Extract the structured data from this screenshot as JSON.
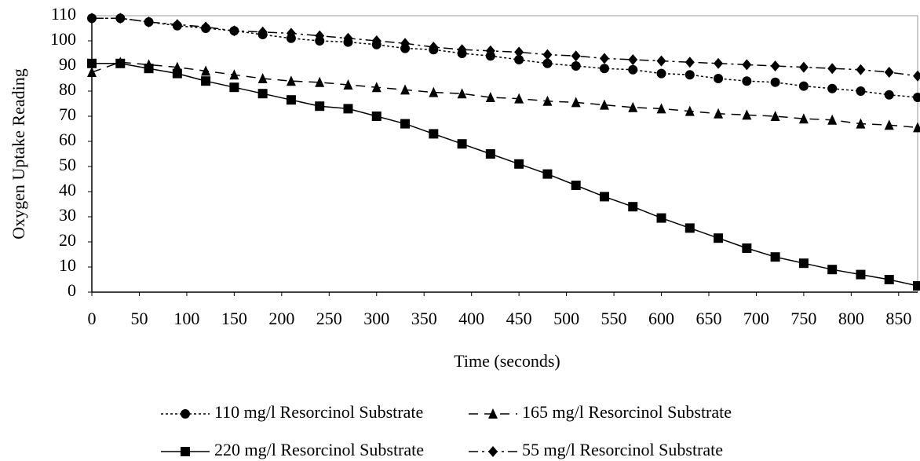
{
  "chart_data": {
    "type": "line",
    "xlabel": "Time (seconds)",
    "ylabel": "Oxygen Uptake Reading",
    "x": [
      0,
      30,
      60,
      90,
      120,
      150,
      180,
      210,
      240,
      270,
      300,
      330,
      360,
      390,
      420,
      450,
      480,
      510,
      540,
      570,
      600,
      630,
      660,
      690,
      720,
      750,
      780,
      810,
      840,
      870
    ],
    "xlim": [
      0,
      870
    ],
    "xticks": [
      0,
      50,
      100,
      150,
      200,
      250,
      300,
      350,
      400,
      450,
      500,
      550,
      600,
      650,
      700,
      750,
      800,
      850
    ],
    "ylim": [
      0,
      110
    ],
    "yticks": [
      0,
      10,
      20,
      30,
      40,
      50,
      60,
      70,
      80,
      90,
      100,
      110
    ],
    "series": [
      {
        "name": "110 mg/l Resorcinol Substrate",
        "color": "#000000",
        "marker": "circle",
        "dash": "dotted",
        "values": [
          109,
          109,
          107.5,
          106,
          105,
          104,
          102.5,
          101,
          100,
          99.5,
          98.5,
          97,
          96.5,
          95,
          94,
          92.5,
          91,
          90,
          89,
          88.5,
          87,
          86.5,
          85,
          84,
          83.5,
          82,
          81,
          80,
          78.5,
          77.5
        ]
      },
      {
        "name": "165 mg/l Resorcinol Substrate",
        "color": "#000000",
        "marker": "triangle",
        "dash": "dashed",
        "values": [
          87.5,
          91.5,
          90.5,
          89.5,
          88,
          86.5,
          85,
          84,
          83.5,
          82.5,
          81.5,
          80.5,
          79.5,
          79,
          77.5,
          77,
          76,
          75.5,
          74.5,
          73.5,
          73,
          72,
          71,
          70.5,
          70,
          69,
          68.5,
          67,
          66.5,
          65.5
        ]
      },
      {
        "name": "220 mg/l Resorcinol Substrate",
        "color": "#000000",
        "marker": "square",
        "dash": "solid",
        "values": [
          91,
          91,
          89,
          87,
          84,
          81.5,
          79,
          76.5,
          74,
          73,
          70,
          67,
          63,
          59,
          55,
          51,
          47,
          42.5,
          38,
          34,
          29.5,
          25.5,
          21.5,
          17.5,
          14,
          11.5,
          9,
          7,
          5,
          2.5
        ]
      },
      {
        "name": "55 mg/l Resorcinol Substrate",
        "color": "#000000",
        "marker": "diamond",
        "dash": "dashdot",
        "values": [
          109,
          109,
          107.5,
          106.5,
          105.5,
          104,
          103.5,
          103,
          102,
          101,
          100,
          99,
          97.5,
          96.5,
          96,
          95.5,
          94.5,
          94,
          93,
          92.5,
          92,
          91.5,
          91,
          90.5,
          90,
          89.5,
          89,
          88.5,
          87.5,
          86
        ]
      }
    ]
  }
}
